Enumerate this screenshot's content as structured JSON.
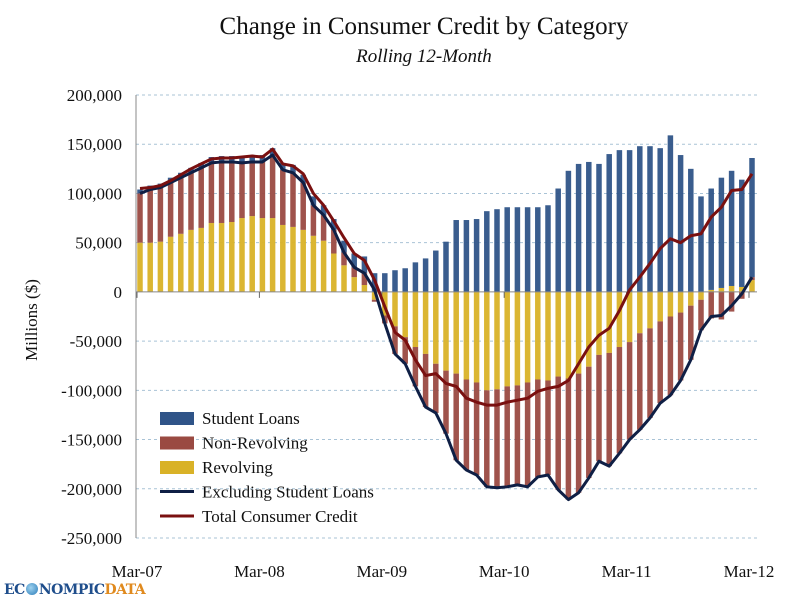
{
  "chart_data": {
    "type": "bar",
    "stacked": true,
    "title": "Change in Consumer Credit by Category",
    "subtitle": "Rolling 12-Month",
    "xlabel": "",
    "ylabel": "Millions ($)",
    "ylim": [
      -250000,
      200000
    ],
    "yticks": [
      200000,
      150000,
      100000,
      50000,
      0,
      -50000,
      -100000,
      -150000,
      -200000,
      -250000
    ],
    "ytick_labels": [
      "200,000",
      "150,000",
      "100,000",
      "50,000",
      "0",
      "-50,000",
      "-100,000",
      "-150,000",
      "-200,000",
      "-250,000"
    ],
    "xtick_labels": [
      "Mar-07",
      "Mar-08",
      "Mar-09",
      "Mar-10",
      "Mar-11",
      "Mar-12"
    ],
    "grid": true,
    "legend_position": "bottom-left",
    "categories": [
      "Mar-07",
      "Apr-07",
      "May-07",
      "Jun-07",
      "Jul-07",
      "Aug-07",
      "Sep-07",
      "Oct-07",
      "Nov-07",
      "Dec-07",
      "Jan-08",
      "Feb-08",
      "Mar-08",
      "Apr-08",
      "May-08",
      "Jun-08",
      "Jul-08",
      "Aug-08",
      "Sep-08",
      "Oct-08",
      "Nov-08",
      "Dec-08",
      "Jan-09",
      "Feb-09",
      "Mar-09",
      "Apr-09",
      "May-09",
      "Jun-09",
      "Jul-09",
      "Aug-09",
      "Sep-09",
      "Oct-09",
      "Nov-09",
      "Dec-09",
      "Jan-10",
      "Feb-10",
      "Mar-10",
      "Apr-10",
      "May-10",
      "Jun-10",
      "Jul-10",
      "Aug-10",
      "Sep-10",
      "Oct-10",
      "Nov-10",
      "Dec-10",
      "Jan-11",
      "Feb-11",
      "Mar-11",
      "Apr-11",
      "May-11",
      "Jun-11",
      "Jul-11",
      "Aug-11",
      "Sep-11",
      "Oct-11",
      "Nov-11",
      "Dec-11",
      "Jan-12",
      "Feb-12",
      "Mar-12"
    ],
    "bar_series": [
      {
        "name": "Revolving",
        "color": "#d9b227",
        "values": [
          50000,
          50000,
          51000,
          56000,
          59000,
          63000,
          65000,
          70000,
          70000,
          71000,
          75000,
          77000,
          75000,
          75000,
          68000,
          66000,
          63000,
          57000,
          52000,
          39000,
          27000,
          15000,
          7000,
          -8000,
          -24000,
          -35000,
          -46000,
          -56000,
          -63000,
          -73000,
          -80000,
          -83000,
          -89000,
          -92000,
          -100000,
          -99000,
          -96000,
          -95000,
          -92000,
          -89000,
          -90000,
          -86000,
          -88000,
          -83000,
          -76000,
          -64000,
          -62000,
          -56000,
          -51000,
          -42000,
          -37000,
          -30000,
          -25000,
          -21000,
          -14000,
          -8000,
          2000,
          4000,
          6000,
          5000,
          12000
        ]
      },
      {
        "name": "Non-Revolving",
        "color": "#9a4a42",
        "values": [
          50000,
          54000,
          55000,
          55000,
          57000,
          58000,
          61000,
          61000,
          62000,
          61000,
          56000,
          55000,
          57000,
          64000,
          56000,
          55000,
          48000,
          31000,
          26000,
          24000,
          13000,
          10000,
          12000,
          -2000,
          -8000,
          -28000,
          -27000,
          -40000,
          -54000,
          -50000,
          -64000,
          -88000,
          -92000,
          -94000,
          -98000,
          -100000,
          -102000,
          -101000,
          -106000,
          -99000,
          -96000,
          -115000,
          -123000,
          -121000,
          -113000,
          -108000,
          -115000,
          -108000,
          -99000,
          -98000,
          -91000,
          -83000,
          -80000,
          -69000,
          -55000,
          -31000,
          -27000,
          -28000,
          -20000,
          -7000,
          3000
        ]
      },
      {
        "name": "Student Loans",
        "color": "#2f5488",
        "values": [
          4000,
          4000,
          4000,
          5000,
          5000,
          5000,
          5000,
          6000,
          6000,
          6000,
          7000,
          7000,
          7000,
          7000,
          7000,
          8000,
          8000,
          9000,
          10000,
          11000,
          12000,
          14000,
          17000,
          19000,
          19000,
          22000,
          24000,
          30000,
          34000,
          42000,
          51000,
          73000,
          73000,
          74000,
          82000,
          84000,
          86000,
          86000,
          86000,
          86000,
          88000,
          105000,
          123000,
          130000,
          132000,
          130000,
          140000,
          144000,
          144000,
          148000,
          148000,
          146000,
          159000,
          139000,
          125000,
          97000,
          103000,
          112000,
          117000,
          109000,
          121000
        ]
      }
    ],
    "line_series": [
      {
        "name": "Excluding Student Loans",
        "color": "#0f1f45",
        "values": [
          100000,
          104000,
          106000,
          111000,
          116000,
          121000,
          126000,
          131000,
          132000,
          132000,
          131000,
          132000,
          132000,
          139000,
          124000,
          121000,
          111000,
          88000,
          78000,
          63000,
          40000,
          25000,
          19000,
          2000,
          -32000,
          -63000,
          -73000,
          -96000,
          -117000,
          -123000,
          -144000,
          -171000,
          -181000,
          -186000,
          -198000,
          -199000,
          -198000,
          -196000,
          -198000,
          -188000,
          -186000,
          -201000,
          -211000,
          -204000,
          -189000,
          -172000,
          -177000,
          -164000,
          -150000,
          -140000,
          -128000,
          -113000,
          -105000,
          -90000,
          -69000,
          -39000,
          -25000,
          -24000,
          -14000,
          -2000,
          15000
        ]
      },
      {
        "name": "Total Consumer Credit",
        "color": "#7a1010",
        "values": [
          105000,
          106000,
          108000,
          113000,
          119000,
          125000,
          130000,
          135000,
          136000,
          136000,
          137000,
          138000,
          137000,
          145000,
          130000,
          128000,
          120000,
          100000,
          88000,
          72000,
          55000,
          39000,
          32000,
          12000,
          -15000,
          -41000,
          -49000,
          -69000,
          -85000,
          -83000,
          -93000,
          -96000,
          -108000,
          -112000,
          -115000,
          -115000,
          -112000,
          -110000,
          -108000,
          -101000,
          -98000,
          -96000,
          -90000,
          -73000,
          -56000,
          -44000,
          -37000,
          -19000,
          2000,
          15000,
          29000,
          44000,
          54000,
          50000,
          57000,
          59000,
          76000,
          86000,
          103000,
          104000,
          120000
        ]
      }
    ],
    "legend": [
      "Student Loans",
      "Non-Revolving",
      "Revolving",
      "Excluding Student Loans",
      "Total Consumer Credit"
    ]
  },
  "logo": {
    "part1": "EC",
    "part2": "NOMPIC",
    "part3": "DATA"
  }
}
